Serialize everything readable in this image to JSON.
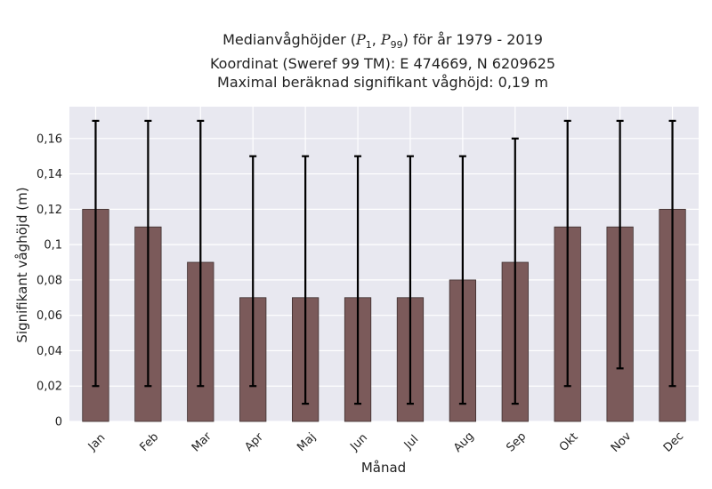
{
  "chart_data": {
    "type": "bar",
    "title_lines": {
      "line1_prefix": "Medianvåghöjder (",
      "p1_var": "P",
      "p1_sub": "1",
      "sep": ", ",
      "p99_var": "P",
      "p99_sub": "99",
      "line1_suffix": ") för år 1979 - 2019",
      "line2": "Koordinat (Sweref 99 TM): E 474669, N 6209625",
      "line3": "Maximal beräknad signifikant våghöjd: 0,19 m"
    },
    "xlabel": "Månad",
    "ylabel": "Signifikant våghöjd (m)",
    "categories": [
      "Jan",
      "Feb",
      "Mar",
      "Apr",
      "Maj",
      "Jun",
      "Jul",
      "Aug",
      "Sep",
      "Okt",
      "Nov",
      "Dec"
    ],
    "values": [
      0.12,
      0.11,
      0.09,
      0.07,
      0.07,
      0.07,
      0.07,
      0.08,
      0.09,
      0.11,
      0.11,
      0.12
    ],
    "error_low": [
      0.02,
      0.02,
      0.02,
      0.02,
      0.01,
      0.01,
      0.01,
      0.01,
      0.01,
      0.02,
      0.03,
      0.02
    ],
    "error_high": [
      0.17,
      0.17,
      0.17,
      0.15,
      0.15,
      0.15,
      0.15,
      0.15,
      0.16,
      0.17,
      0.17,
      0.17
    ],
    "ylim": [
      0,
      0.178
    ],
    "yticks": [
      0,
      0.02,
      0.04,
      0.06,
      0.08,
      0.1,
      0.12,
      0.14,
      0.16
    ],
    "ytick_labels": [
      "0",
      "0,02",
      "0,04",
      "0,06",
      "0,08",
      "0,1",
      "0,12",
      "0,14",
      "0,16"
    ],
    "grid": true,
    "bar_color": "#7b5a5a",
    "bar_edge_color": "#3d2e2e",
    "errorbar_color": "#000000",
    "background_color": "#e8e8f0",
    "grid_color": "#ffffff"
  }
}
